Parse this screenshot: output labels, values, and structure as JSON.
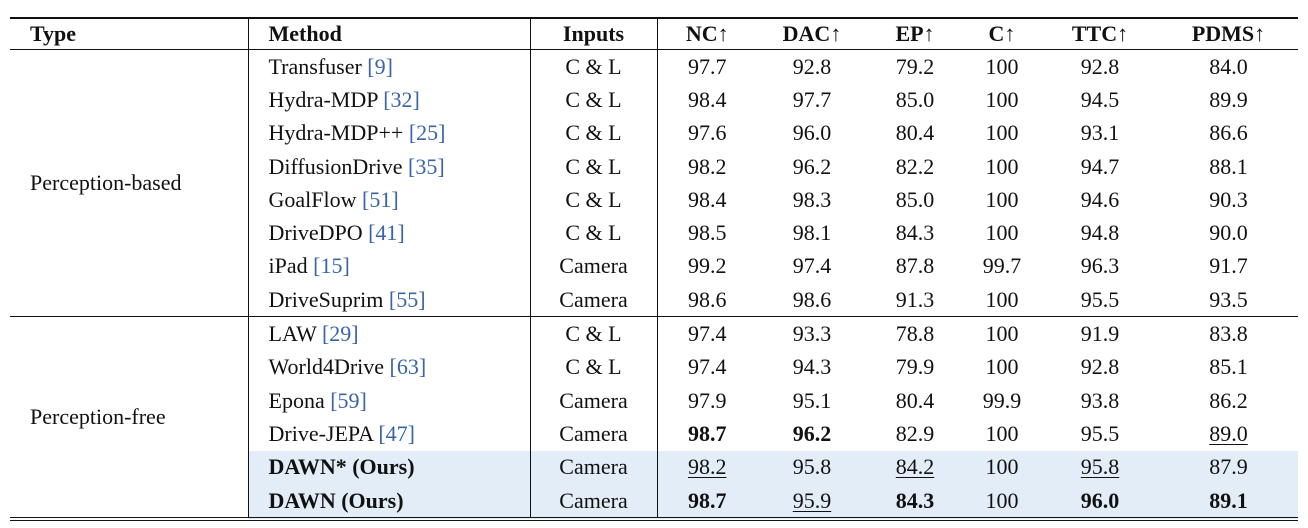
{
  "header": [
    "Type",
    "Method",
    "Inputs",
    "NC↑",
    "DAC↑",
    "EP↑",
    "C↑",
    "TTC↑",
    "PDMS↑"
  ],
  "groups": [
    {
      "type": "Perception-based",
      "rows": [
        {
          "method": "Transfuser",
          "cite": "[9]",
          "inputs": "C & L",
          "values": [
            "97.7",
            "92.8",
            "79.2",
            "100",
            "92.8",
            "84.0"
          ]
        },
        {
          "method": "Hydra-MDP",
          "cite": "[32]",
          "inputs": "C & L",
          "values": [
            "98.4",
            "97.7",
            "85.0",
            "100",
            "94.5",
            "89.9"
          ]
        },
        {
          "method": "Hydra-MDP++",
          "cite": "[25]",
          "inputs": "C & L",
          "values": [
            "97.6",
            "96.0",
            "80.4",
            "100",
            "93.1",
            "86.6"
          ]
        },
        {
          "method": "DiffusionDrive",
          "cite": "[35]",
          "inputs": "C & L",
          "values": [
            "98.2",
            "96.2",
            "82.2",
            "100",
            "94.7",
            "88.1"
          ]
        },
        {
          "method": "GoalFlow",
          "cite": "[51]",
          "inputs": "C & L",
          "values": [
            "98.4",
            "98.3",
            "85.0",
            "100",
            "94.6",
            "90.3"
          ]
        },
        {
          "method": "DriveDPO",
          "cite": "[41]",
          "inputs": "C & L",
          "values": [
            "98.5",
            "98.1",
            "84.3",
            "100",
            "94.8",
            "90.0"
          ]
        },
        {
          "method": "iPad",
          "cite": "[15]",
          "inputs": "Camera",
          "values": [
            "99.2",
            "97.4",
            "87.8",
            "99.7",
            "96.3",
            "91.7"
          ]
        },
        {
          "method": "DriveSuprim",
          "cite": "[55]",
          "inputs": "Camera",
          "values": [
            "98.6",
            "98.6",
            "91.3",
            "100",
            "95.5",
            "93.5"
          ]
        }
      ]
    },
    {
      "type": "Perception-free",
      "rows": [
        {
          "method": "LAW",
          "cite": "[29]",
          "inputs": "C & L",
          "values": [
            "97.4",
            "93.3",
            "78.8",
            "100",
            "91.9",
            "83.8"
          ]
        },
        {
          "method": "World4Drive",
          "cite": "[63]",
          "inputs": "C & L",
          "values": [
            "97.4",
            "94.3",
            "79.9",
            "100",
            "92.8",
            "85.1"
          ]
        },
        {
          "method": "Epona",
          "cite": "[59]",
          "inputs": "Camera",
          "values": [
            "97.9",
            "95.1",
            "80.4",
            "99.9",
            "93.8",
            "86.2"
          ]
        },
        {
          "method": "Drive-JEPA",
          "cite": "[47]",
          "inputs": "Camera",
          "values": [
            "98.7",
            "96.2",
            "82.9",
            "100",
            "95.5",
            "89.0"
          ]
        },
        {
          "method": "DAWN* (Ours)",
          "inputs": "Camera",
          "values": [
            "98.2",
            "95.8",
            "84.2",
            "100",
            "95.8",
            "87.9"
          ]
        },
        {
          "method": "DAWN (Ours)",
          "inputs": "Camera",
          "values": [
            "98.7",
            "95.9",
            "84.3",
            "100",
            "96.0",
            "89.1"
          ]
        }
      ]
    }
  ]
}
